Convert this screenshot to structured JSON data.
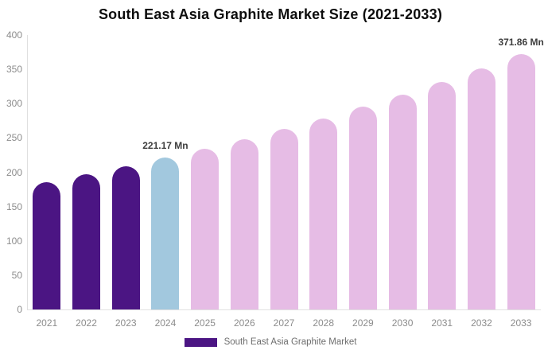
{
  "chart_data": {
    "type": "bar",
    "title": "South East Asia Graphite Market Size (2021-2033)",
    "categories": [
      "2021",
      "2022",
      "2023",
      "2024",
      "2025",
      "2026",
      "2027",
      "2028",
      "2029",
      "2030",
      "2031",
      "2032",
      "2033"
    ],
    "values": [
      186.0,
      197.1,
      208.8,
      221.17,
      234.3,
      248.2,
      263.0,
      278.6,
      295.2,
      312.7,
      331.3,
      351.0,
      371.86
    ],
    "unit": "Mn",
    "xlabel": "",
    "ylabel": "",
    "ylim": [
      0,
      400
    ],
    "yticks": [
      0,
      50,
      100,
      150,
      200,
      250,
      300,
      350,
      400
    ],
    "grid": false,
    "legend_position": "bottom",
    "legend_entries": [
      "South East Asia Graphite Market"
    ],
    "annotations": [
      {
        "category": "2024",
        "text": "221.17 Mn"
      },
      {
        "category": "2033",
        "text": "371.86 Mn"
      }
    ],
    "bar_color_keys": [
      "historical",
      "historical",
      "historical",
      "highlight",
      "forecast",
      "forecast",
      "forecast",
      "forecast",
      "forecast",
      "forecast",
      "forecast",
      "forecast",
      "forecast"
    ]
  },
  "colors": {
    "historical": "#4B1583",
    "highlight": "#A2C8DE",
    "forecast": "#E6BCE5",
    "title_text": "#0D0D0D",
    "axis_text": "#8C8C8C",
    "annotation_text": "#3D3D3D",
    "legend_text": "#6E6E6E",
    "axis_line": "#E0E0E0"
  }
}
